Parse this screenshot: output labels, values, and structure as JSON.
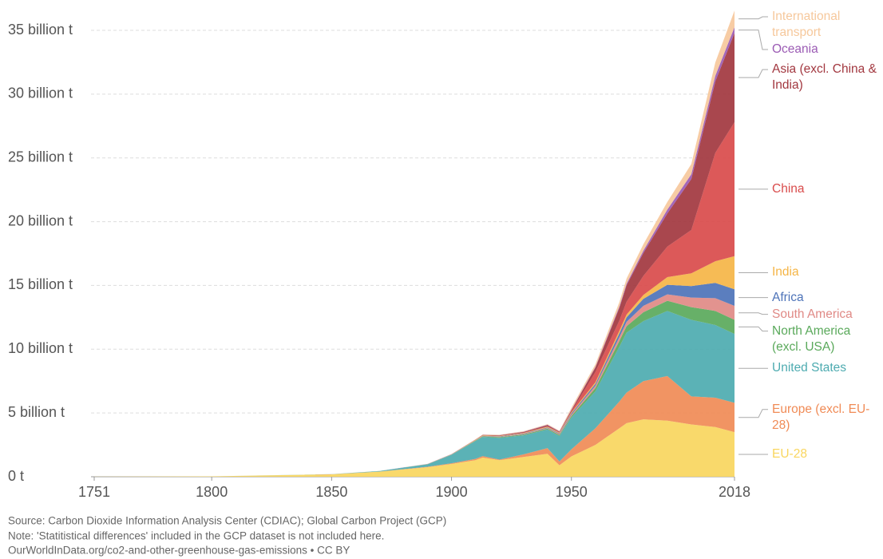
{
  "chart_data": {
    "type": "stacked-area",
    "x": [
      1751,
      1800,
      1850,
      1870,
      1890,
      1900,
      1910,
      1913,
      1920,
      1930,
      1940,
      1945,
      1950,
      1960,
      1970,
      1973,
      1980,
      1990,
      2000,
      2010,
      2018
    ],
    "xlim": [
      1751,
      2018
    ],
    "xticks": [
      1751,
      1800,
      1850,
      1900,
      1950,
      2018
    ],
    "ylim": [
      0,
      35000000000.0
    ],
    "yticks": [
      {
        "value": 0,
        "label": "0 t"
      },
      {
        "value": 5000000000.0,
        "label": "5 billion t"
      },
      {
        "value": 10000000000.0,
        "label": "10 billion t"
      },
      {
        "value": 15000000000.0,
        "label": "15 billion t"
      },
      {
        "value": 20000000000.0,
        "label": "20 billion t"
      },
      {
        "value": 25000000000.0,
        "label": "25 billion t"
      },
      {
        "value": 30000000000.0,
        "label": "30 billion t"
      },
      {
        "value": 35000000000.0,
        "label": "35 billion t"
      }
    ],
    "grid": true,
    "series": [
      {
        "name": "EU-28",
        "color": "#f9d65e",
        "values": [
          9000000.0,
          30000000.0,
          190000000.0,
          400000000.0,
          750000000.0,
          1000000000.0,
          1300000000.0,
          1500000000.0,
          1300000000.0,
          1550000000.0,
          1800000000.0,
          900000000.0,
          1600000000.0,
          2500000000.0,
          3800000000.0,
          4200000000.0,
          4500000000.0,
          4400000000.0,
          4100000000.0,
          3900000000.0,
          3500000000.0
        ]
      },
      {
        "name": "Europe (excl. EU-28)",
        "color": "#f08b56",
        "values": [
          1000000.0,
          1000000.0,
          5000000.0,
          10000000.0,
          30000000.0,
          60000000.0,
          100000000.0,
          120000000.0,
          50000000.0,
          200000000.0,
          450000000.0,
          300000000.0,
          550000000.0,
          1300000000.0,
          2100000000.0,
          2400000000.0,
          3000000000.0,
          3500000000.0,
          2200000000.0,
          2300000000.0,
          2300000000.0
        ]
      },
      {
        "name": "United States",
        "color": "#4dabb0",
        "values": [
          0,
          300000.0,
          5000000.0,
          40000000.0,
          200000000.0,
          660000000.0,
          1400000000.0,
          1500000000.0,
          1700000000.0,
          1500000000.0,
          1450000000.0,
          2000000000.0,
          2500000000.0,
          2900000000.0,
          4300000000.0,
          4700000000.0,
          4700000000.0,
          5100000000.0,
          6000000000.0,
          5700000000.0,
          5400000000.0
        ]
      },
      {
        "name": "North America (excl. USA)",
        "color": "#5aa95b",
        "values": [
          0,
          0,
          500000.0,
          3000000.0,
          10000000.0,
          20000000.0,
          40000000.0,
          50000000.0,
          60000000.0,
          60000000.0,
          70000000.0,
          80000000.0,
          120000000.0,
          250000000.0,
          450000000.0,
          500000000.0,
          700000000.0,
          800000000.0,
          1000000000.0,
          1100000000.0,
          1100000000.0
        ]
      },
      {
        "name": "South America",
        "color": "#e08a86",
        "values": [
          0,
          0,
          0,
          1000000.0,
          3000000.0,
          5000000.0,
          15000000.0,
          20000000.0,
          30000000.0,
          40000000.0,
          50000000.0,
          60000000.0,
          100000000.0,
          190000000.0,
          300000000.0,
          350000000.0,
          500000000.0,
          500000000.0,
          750000000.0,
          1000000000.0,
          1100000000.0
        ]
      },
      {
        "name": "Africa",
        "color": "#4d73b8",
        "values": [
          0,
          0,
          0,
          1000000.0,
          3000000.0,
          6000000.0,
          12000000.0,
          20000000.0,
          30000000.0,
          40000000.0,
          50000000.0,
          60000000.0,
          100000000.0,
          150000000.0,
          300000000.0,
          350000000.0,
          550000000.0,
          750000000.0,
          900000000.0,
          1200000000.0,
          1300000000.0
        ]
      },
      {
        "name": "India",
        "color": "#f5b546",
        "values": [
          0,
          0,
          0,
          1000000.0,
          4000000.0,
          10000000.0,
          20000000.0,
          30000000.0,
          30000000.0,
          40000000.0,
          50000000.0,
          50000000.0,
          70000000.0,
          120000000.0,
          200000000.0,
          220000000.0,
          300000000.0,
          600000000.0,
          1000000000.0,
          1700000000.0,
          2600000000.0
        ]
      },
      {
        "name": "China",
        "color": "#d94b4b",
        "values": [
          0,
          0,
          0,
          0,
          1000000.0,
          1000000.0,
          5000000.0,
          8000000.0,
          10000000.0,
          20000000.0,
          30000000.0,
          30000000.0,
          80000000.0,
          800000000.0,
          800000000.0,
          1000000000.0,
          1500000000.0,
          2400000000.0,
          3400000000.0,
          8500000000.0,
          10500000000.0
        ]
      },
      {
        "name": "Asia (excl. China & India)",
        "color": "#a2373f",
        "values": [
          0,
          0,
          0,
          0,
          2000000.0,
          6000000.0,
          20000000.0,
          30000000.0,
          40000000.0,
          60000000.0,
          100000000.0,
          50000000.0,
          100000000.0,
          350000000.0,
          1000000000.0,
          1300000000.0,
          1800000000.0,
          2600000000.0,
          4000000000.0,
          5600000000.0,
          7000000000.0
        ]
      },
      {
        "name": "Oceania",
        "color": "#9b5bb4",
        "values": [
          0,
          0,
          0,
          1000000.0,
          3000000.0,
          6000000.0,
          10000000.0,
          12000000.0,
          15000000.0,
          20000000.0,
          25000000.0,
          30000000.0,
          40000000.0,
          60000000.0,
          100000000.0,
          120000000.0,
          180000000.0,
          300000000.0,
          370000000.0,
          440000000.0,
          450000000.0
        ]
      },
      {
        "name": "International transport",
        "color": "#f6c89c",
        "values": [
          0,
          0,
          0,
          0,
          5000000.0,
          10000000.0,
          20000000.0,
          20000000.0,
          30000000.0,
          40000000.0,
          50000000.0,
          50000000.0,
          150000000.0,
          200000000.0,
          350000000.0,
          400000000.0,
          500000000.0,
          600000000.0,
          800000000.0,
          1050000000.0,
          1300000000.0
        ]
      }
    ],
    "source": "Source: Carbon Dioxide Information Analysis Center (CDIAC); Global Carbon Project (GCP)",
    "note": "Note: 'Statitistical differences' included in the GCP dataset is not included here.",
    "credit": "OurWorldInData.org/co2-and-other-greenhouse-gas-emissions • CC BY"
  }
}
